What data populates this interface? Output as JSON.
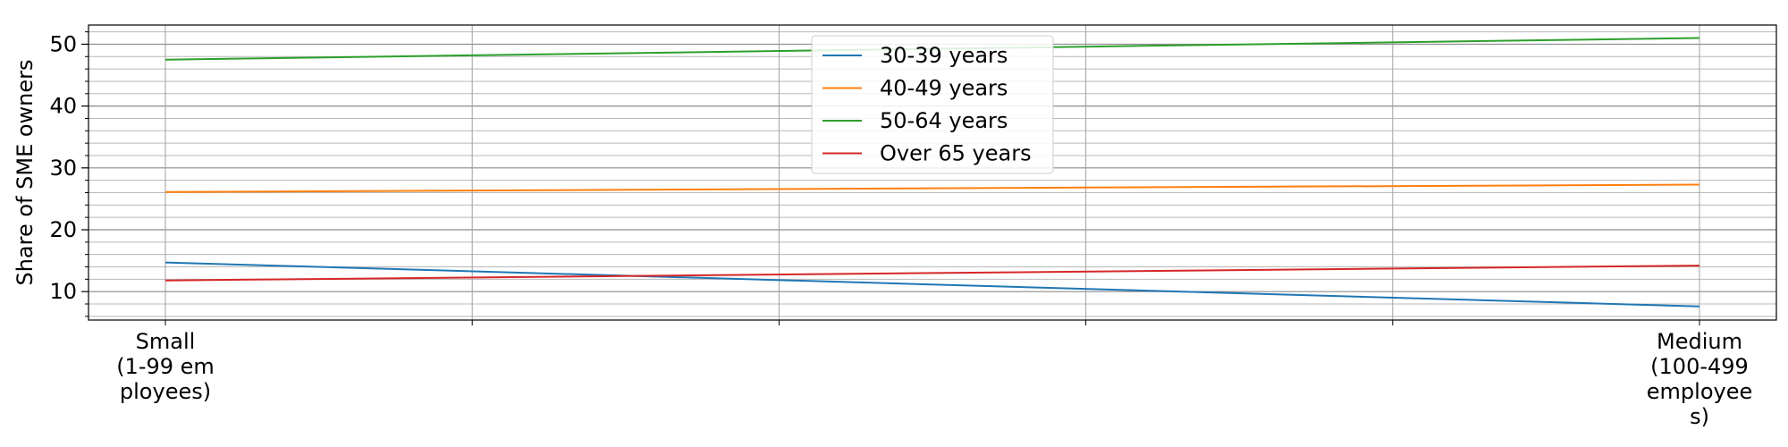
{
  "chart_data": {
    "type": "line",
    "categories": [
      "Small\n(1-99 em\nployees)",
      "Medium\n(100-499\nemployee\ns)"
    ],
    "ylabel": "Share of SME owners",
    "xlabel": "",
    "ylim": [
      5.4,
      53.1
    ],
    "yticks": [
      10,
      20,
      30,
      40,
      50
    ],
    "grid": true,
    "legend_position": "upper-center",
    "series": [
      {
        "name": "30-39 years",
        "color": "#1f77b4",
        "values": [
          14.7,
          7.6
        ]
      },
      {
        "name": "40-49 years",
        "color": "#ff7f0e",
        "values": [
          26.1,
          27.3
        ]
      },
      {
        "name": "50-64 years",
        "color": "#2ca02c",
        "values": [
          47.5,
          51.0
        ]
      },
      {
        "name": "Over 65 years",
        "color": "#d62728",
        "values": [
          11.8,
          14.2
        ]
      }
    ]
  }
}
